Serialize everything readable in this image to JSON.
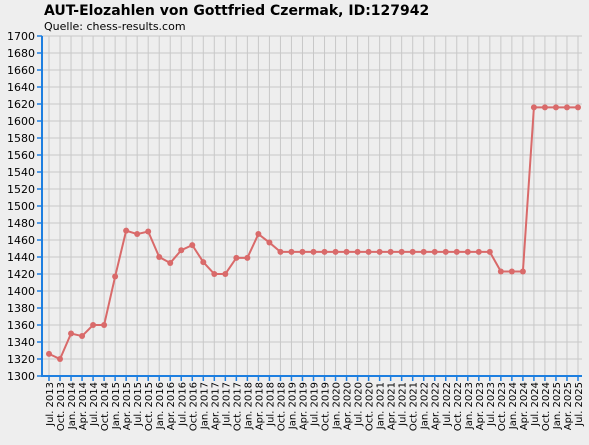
{
  "chart_data": {
    "type": "line",
    "title": "AUT-Elozahlen von Gottfried Czermak, ID:127942",
    "subtitle": "Quelle: chess-results.com",
    "categories": [
      "Jul. 2013",
      "Oct. 2013",
      "Jan. 2014",
      "Apr. 2014",
      "Jul. 2014",
      "Oct. 2014",
      "Jan. 2015",
      "Apr. 2015",
      "Jul. 2015",
      "Oct. 2015",
      "Jan. 2016",
      "Apr. 2016",
      "Jul. 2016",
      "Oct. 2016",
      "Jan. 2017",
      "Apr. 2017",
      "Jul. 2017",
      "Oct. 2017",
      "Jan. 2018",
      "Apr. 2018",
      "Jul. 2018",
      "Oct. 2018",
      "Jan. 2019",
      "Apr. 2019",
      "Jul. 2019",
      "Oct. 2019",
      "Jan. 2020",
      "Apr. 2020",
      "Jul. 2020",
      "Oct. 2020",
      "Jan. 2021",
      "Apr. 2021",
      "Jul. 2021",
      "Oct. 2021",
      "Jan. 2022",
      "Apr. 2022",
      "Jul. 2022",
      "Oct. 2022",
      "Jan. 2023",
      "Apr. 2023",
      "Jul. 2023",
      "Oct. 2023",
      "Jan. 2024",
      "Apr. 2024",
      "Jul. 2024",
      "Oct. 2024",
      "Jan. 2025",
      "Apr. 2025",
      "Jul. 2025"
    ],
    "values": [
      1326,
      1320,
      1350,
      1347,
      1360,
      1360,
      1417,
      1471,
      1467,
      1470,
      1440,
      1433,
      1448,
      1454,
      1434,
      1420,
      1420,
      1439,
      1439,
      1467,
      1457,
      1446,
      1446,
      1446,
      1446,
      1446,
      1446,
      1446,
      1446,
      1446,
      1446,
      1446,
      1446,
      1446,
      1446,
      1446,
      1446,
      1446,
      1446,
      1446,
      1446,
      1423,
      1423,
      1423,
      1616,
      1616,
      1616,
      1616,
      1616
    ],
    "color": "#d96a6a",
    "ylim": [
      1300,
      1700
    ],
    "yticks": [
      1300,
      1320,
      1340,
      1360,
      1380,
      1400,
      1420,
      1440,
      1460,
      1480,
      1500,
      1520,
      1540,
      1560,
      1580,
      1600,
      1620,
      1640,
      1660,
      1680,
      1700
    ],
    "grid": true
  }
}
